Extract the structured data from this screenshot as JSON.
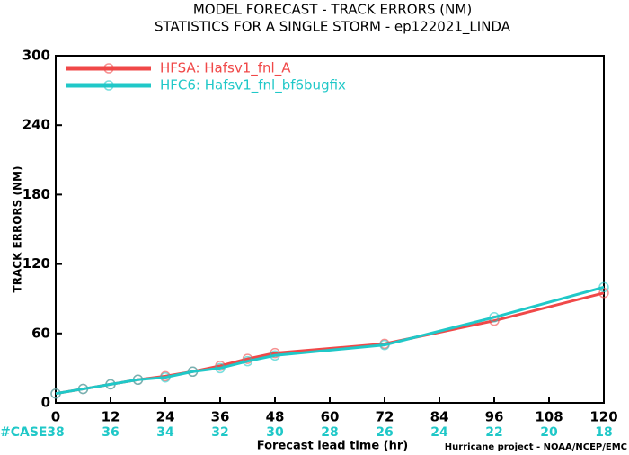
{
  "chart_data": {
    "type": "line",
    "title": "MODEL FORECAST - TRACK ERRORS (NM)",
    "subtitle": "STATISTICS FOR A SINGLE STORM - ep122021_LINDA",
    "x_label": "Forecast lead time (hr)",
    "y_label": "TRACK ERRORS (NM)",
    "x": [
      0,
      6,
      12,
      18,
      24,
      30,
      36,
      42,
      48,
      72,
      96,
      120
    ],
    "series": [
      {
        "name": "HFSA: Hafsv1_fnl_A",
        "color": "#f04848",
        "values": [
          8,
          12,
          16,
          20,
          23,
          27,
          32,
          38,
          43,
          51,
          71,
          95
        ]
      },
      {
        "name": "HFC6: Hafsv1_fnl_bf6bugfix",
        "color": "#20c8c8",
        "values": [
          8,
          12,
          16,
          20,
          22,
          27,
          30,
          36,
          41,
          50,
          74,
          100
        ]
      }
    ],
    "xlim": [
      0,
      120
    ],
    "xticks": [
      0,
      12,
      24,
      36,
      48,
      60,
      72,
      84,
      96,
      108,
      120
    ],
    "ylim": [
      0,
      300
    ],
    "yticks": [
      0,
      60,
      120,
      180,
      240,
      300
    ],
    "legend": "upper-left",
    "case_label": "#CASE",
    "case_counts": [
      38,
      36,
      34,
      32,
      30,
      28,
      26,
      24,
      22,
      20,
      18
    ],
    "footer": "Hurricane project - NOAA/NCEP/EMC"
  }
}
